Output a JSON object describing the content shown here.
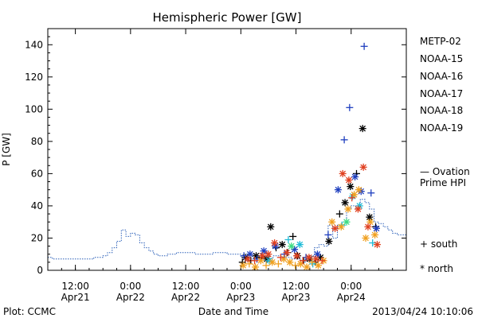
{
  "chart_data": {
    "type": "scatter",
    "title": "Hemispheric Power [GW]",
    "ylabel": "P [GW]",
    "xlabel": "Date and Time",
    "ylim": [
      0,
      150
    ],
    "yticks": [
      0,
      20,
      40,
      60,
      80,
      100,
      120,
      140
    ],
    "xlim": [
      "2013-04-21 06:00",
      "2013-04-24 12:00"
    ],
    "xticks": [
      {
        "t": "2013-04-21 12:00",
        "time": "12:00",
        "date": "Apr21"
      },
      {
        "t": "2013-04-22 00:00",
        "time": "0:00",
        "date": "Apr22"
      },
      {
        "t": "2013-04-22 12:00",
        "time": "12:00",
        "date": "Apr22"
      },
      {
        "t": "2013-04-23 00:00",
        "time": "0:00",
        "date": "Apr23"
      },
      {
        "t": "2013-04-23 12:00",
        "time": "12:00",
        "date": "Apr23"
      },
      {
        "t": "2013-04-24 00:00",
        "time": "0:00",
        "date": "Apr24"
      }
    ],
    "legend": {
      "placement": "right",
      "satellites": [
        {
          "name": "METP-02",
          "color": "#000000"
        },
        {
          "name": "NOAA-15",
          "color": "#1f3fbf"
        },
        {
          "name": "NOAA-16",
          "color": "#20bcd8"
        },
        {
          "name": "NOAA-17",
          "color": "#3ddc84"
        },
        {
          "name": "NOAA-18",
          "color": "#f0a020"
        },
        {
          "name": "NOAA-19",
          "color": "#e04020"
        }
      ],
      "model_label_1": "— Ovation",
      "model_label_2": "Prime HPI",
      "south_label": "+ south",
      "north_label": "* north"
    },
    "model_series": {
      "name": "Ovation Prime HPI",
      "color": "#2a5fb8",
      "points": [
        [
          "2013-04-21 06:00",
          8
        ],
        [
          "2013-04-21 07:00",
          7
        ],
        [
          "2013-04-21 15:00",
          7
        ],
        [
          "2013-04-21 16:00",
          8
        ],
        [
          "2013-04-21 18:00",
          9
        ],
        [
          "2013-04-21 19:00",
          11
        ],
        [
          "2013-04-21 20:00",
          14
        ],
        [
          "2013-04-21 21:00",
          18
        ],
        [
          "2013-04-21 22:00",
          25
        ],
        [
          "2013-04-21 23:00",
          21
        ],
        [
          "2013-04-22 00:00",
          23
        ],
        [
          "2013-04-22 01:00",
          22
        ],
        [
          "2013-04-22 02:00",
          17
        ],
        [
          "2013-04-22 03:00",
          14
        ],
        [
          "2013-04-22 04:00",
          12
        ],
        [
          "2013-04-22 05:00",
          10
        ],
        [
          "2013-04-22 06:00",
          9
        ],
        [
          "2013-04-22 08:00",
          10
        ],
        [
          "2013-04-22 10:00",
          11
        ],
        [
          "2013-04-22 14:00",
          10
        ],
        [
          "2013-04-22 18:00",
          11
        ],
        [
          "2013-04-22 21:00",
          10
        ],
        [
          "2013-04-23 00:00",
          8
        ],
        [
          "2013-04-23 02:00",
          7
        ],
        [
          "2013-04-23 04:00",
          9
        ],
        [
          "2013-04-23 06:00",
          7
        ],
        [
          "2013-04-23 07:00",
          9
        ],
        [
          "2013-04-23 09:00",
          8
        ],
        [
          "2013-04-23 11:00",
          7
        ],
        [
          "2013-04-23 13:00",
          5
        ],
        [
          "2013-04-23 14:00",
          8
        ],
        [
          "2013-04-23 15:00",
          9
        ],
        [
          "2013-04-23 16:00",
          14
        ],
        [
          "2013-04-23 17:00",
          16
        ],
        [
          "2013-04-23 18:00",
          15
        ],
        [
          "2013-04-23 19:00",
          28
        ],
        [
          "2013-04-23 20:00",
          20
        ],
        [
          "2013-04-23 21:00",
          28
        ],
        [
          "2013-04-23 22:00",
          30
        ],
        [
          "2013-04-23 23:00",
          38
        ],
        [
          "2013-04-24 00:00",
          40
        ],
        [
          "2013-04-24 01:00",
          38
        ],
        [
          "2013-04-24 02:00",
          44
        ],
        [
          "2013-04-24 03:00",
          42
        ],
        [
          "2013-04-24 04:00",
          38
        ],
        [
          "2013-04-24 05:00",
          30
        ],
        [
          "2013-04-24 06:00",
          29
        ],
        [
          "2013-04-24 07:00",
          27
        ],
        [
          "2013-04-24 08:00",
          25
        ],
        [
          "2013-04-24 09:00",
          23
        ],
        [
          "2013-04-24 10:00",
          22
        ],
        [
          "2013-04-24 12:00",
          21
        ]
      ]
    },
    "series": [
      {
        "name": "METP-02",
        "color": "#000000",
        "points": [
          [
            "2013-04-23 00:20",
            5,
            "+"
          ],
          [
            "2013-04-23 01:00",
            8,
            "*"
          ],
          [
            "2013-04-23 02:10",
            6,
            "+"
          ],
          [
            "2013-04-23 03:20",
            9,
            "*"
          ],
          [
            "2013-04-23 04:30",
            8,
            "+"
          ],
          [
            "2013-04-23 05:40",
            7,
            "*"
          ],
          [
            "2013-04-23 06:30",
            27,
            "*"
          ],
          [
            "2013-04-23 07:40",
            14,
            "+"
          ],
          [
            "2013-04-23 09:00",
            16,
            "*"
          ],
          [
            "2013-04-23 10:10",
            11,
            "+"
          ],
          [
            "2013-04-23 11:20",
            21,
            "+"
          ],
          [
            "2013-04-23 12:20",
            9,
            "*"
          ],
          [
            "2013-04-23 13:40",
            6,
            "+"
          ],
          [
            "2013-04-23 15:00",
            7,
            "*"
          ],
          [
            "2013-04-23 16:10",
            5,
            "+"
          ],
          [
            "2013-04-23 17:20",
            8,
            "*"
          ],
          [
            "2013-04-23 19:10",
            18,
            "*"
          ],
          [
            "2013-04-23 21:30",
            35,
            "+"
          ],
          [
            "2013-04-23 22:40",
            42,
            "*"
          ],
          [
            "2013-04-23 23:50",
            52,
            "*"
          ],
          [
            "2013-04-24 01:10",
            60,
            "+"
          ],
          [
            "2013-04-24 02:30",
            88,
            "*"
          ],
          [
            "2013-04-24 04:00",
            33,
            "*"
          ],
          [
            "2013-04-24 05:20",
            27,
            "+"
          ]
        ]
      },
      {
        "name": "NOAA-15",
        "color": "#1f3fbf",
        "points": [
          [
            "2013-04-23 00:40",
            9,
            "+"
          ],
          [
            "2013-04-23 02:00",
            10,
            "*"
          ],
          [
            "2013-04-23 03:30",
            7,
            "+"
          ],
          [
            "2013-04-23 05:00",
            12,
            "*"
          ],
          [
            "2013-04-23 07:30",
            15,
            "*"
          ],
          [
            "2013-04-23 09:30",
            10,
            "+"
          ],
          [
            "2013-04-23 11:40",
            13,
            "*"
          ],
          [
            "2013-04-23 14:10",
            8,
            "+"
          ],
          [
            "2013-04-23 16:40",
            10,
            "*"
          ],
          [
            "2013-04-23 19:00",
            22,
            "+"
          ],
          [
            "2013-04-23 21:10",
            50,
            "*"
          ],
          [
            "2013-04-23 22:30",
            81,
            "+"
          ],
          [
            "2013-04-23 23:40",
            101,
            "+"
          ],
          [
            "2013-04-24 00:50",
            58,
            "*"
          ],
          [
            "2013-04-24 02:10",
            49,
            "*"
          ],
          [
            "2013-04-24 02:50",
            139,
            "+"
          ],
          [
            "2013-04-24 04:20",
            48,
            "+"
          ],
          [
            "2013-04-24 05:30",
            26,
            "*"
          ]
        ]
      },
      {
        "name": "NOAA-16",
        "color": "#20bcd8",
        "points": [
          [
            "2013-04-23 06:10",
            6,
            "*"
          ],
          [
            "2013-04-23 10:20",
            19,
            "+"
          ],
          [
            "2013-04-23 12:50",
            16,
            "*"
          ],
          [
            "2013-04-23 15:40",
            4,
            "+"
          ],
          [
            "2013-04-23 22:00",
            28,
            "+"
          ],
          [
            "2013-04-24 00:20",
            46,
            "*"
          ],
          [
            "2013-04-24 01:50",
            40,
            "*"
          ],
          [
            "2013-04-24 04:40",
            17,
            "+"
          ]
        ]
      },
      {
        "name": "NOAA-17",
        "color": "#3ddc84",
        "points": [
          [
            "2013-04-23 11:00",
            15,
            "*"
          ],
          [
            "2013-04-23 23:00",
            30,
            "*"
          ]
        ]
      },
      {
        "name": "NOAA-18",
        "color": "#f0a020",
        "points": [
          [
            "2013-04-23 00:30",
            3,
            "*"
          ],
          [
            "2013-04-23 01:50",
            4,
            "+"
          ],
          [
            "2013-04-23 03:10",
            2,
            "*"
          ],
          [
            "2013-04-23 04:20",
            6,
            "*"
          ],
          [
            "2013-04-23 05:30",
            3,
            "+"
          ],
          [
            "2013-04-23 06:50",
            5,
            "*"
          ],
          [
            "2013-04-23 08:10",
            4,
            "+"
          ],
          [
            "2013-04-23 09:20",
            7,
            "*"
          ],
          [
            "2013-04-23 10:40",
            5,
            "*"
          ],
          [
            "2013-04-23 11:50",
            3,
            "+"
          ],
          [
            "2013-04-23 13:00",
            4,
            "*"
          ],
          [
            "2013-04-23 14:20",
            2,
            "*"
          ],
          [
            "2013-04-23 15:30",
            5,
            "+"
          ],
          [
            "2013-04-23 16:50",
            3,
            "*"
          ],
          [
            "2013-04-23 18:00",
            6,
            "*"
          ],
          [
            "2013-04-23 19:50",
            30,
            "*"
          ],
          [
            "2013-04-23 21:50",
            27,
            "*"
          ],
          [
            "2013-04-23 23:20",
            38,
            "*"
          ],
          [
            "2013-04-24 00:40",
            47,
            "*"
          ],
          [
            "2013-04-24 01:40",
            50,
            "*"
          ],
          [
            "2013-04-24 03:10",
            20,
            "*"
          ],
          [
            "2013-04-24 04:10",
            30,
            "*"
          ],
          [
            "2013-04-24 05:10",
            22,
            "*"
          ]
        ]
      },
      {
        "name": "NOAA-19",
        "color": "#e04020",
        "points": [
          [
            "2013-04-23 01:30",
            7,
            "*"
          ],
          [
            "2013-04-23 03:00",
            6,
            "+"
          ],
          [
            "2013-04-23 04:40",
            9,
            "*"
          ],
          [
            "2013-04-23 06:00",
            10,
            "*"
          ],
          [
            "2013-04-23 07:20",
            17,
            "*"
          ],
          [
            "2013-04-23 08:40",
            8,
            "+"
          ],
          [
            "2013-04-23 10:00",
            11,
            "*"
          ],
          [
            "2013-04-23 12:10",
            9,
            "*"
          ],
          [
            "2013-04-23 13:30",
            6,
            "+"
          ],
          [
            "2013-04-23 14:50",
            8,
            "*"
          ],
          [
            "2013-04-23 16:20",
            7,
            "*"
          ],
          [
            "2013-04-23 17:40",
            6,
            "+"
          ],
          [
            "2013-04-23 20:30",
            26,
            "*"
          ],
          [
            "2013-04-23 22:10",
            60,
            "*"
          ],
          [
            "2013-04-23 23:30",
            56,
            "*"
          ],
          [
            "2013-04-24 00:10",
            45,
            "+"
          ],
          [
            "2013-04-24 01:30",
            38,
            "*"
          ],
          [
            "2013-04-24 02:40",
            64,
            "*"
          ],
          [
            "2013-04-24 03:40",
            27,
            "*"
          ],
          [
            "2013-04-24 05:40",
            16,
            "*"
          ]
        ]
      }
    ]
  },
  "footer": {
    "plot_source": "Plot: CCMC",
    "timestamp": "2013/04/24 10:10:06"
  }
}
